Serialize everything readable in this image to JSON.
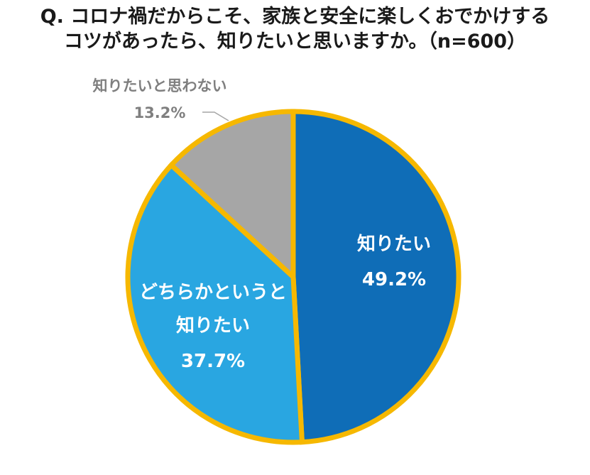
{
  "chart_data": {
    "type": "pie",
    "title_lines": [
      "Q. コロナ禍だからこそ、家族と安全に楽しくおでかけする",
      "コツがあったら、知りたいと思いますか。（n=600）"
    ],
    "slices": [
      {
        "label_lines": [
          "知りたい"
        ],
        "value": 49.2,
        "value_label": "49.2%",
        "color": "#0f6db7"
      },
      {
        "label_lines": [
          "どちらかというと",
          "知りたい"
        ],
        "value": 37.7,
        "value_label": "37.7%",
        "color": "#29a6e1"
      },
      {
        "label_lines": [
          "知りたいと思わない"
        ],
        "value": 13.2,
        "value_label": "13.2%",
        "color": "#a6a6a6"
      }
    ],
    "outline_color": "#f6b800",
    "start_angle": "12 o'clock",
    "direction": "clockwise"
  }
}
